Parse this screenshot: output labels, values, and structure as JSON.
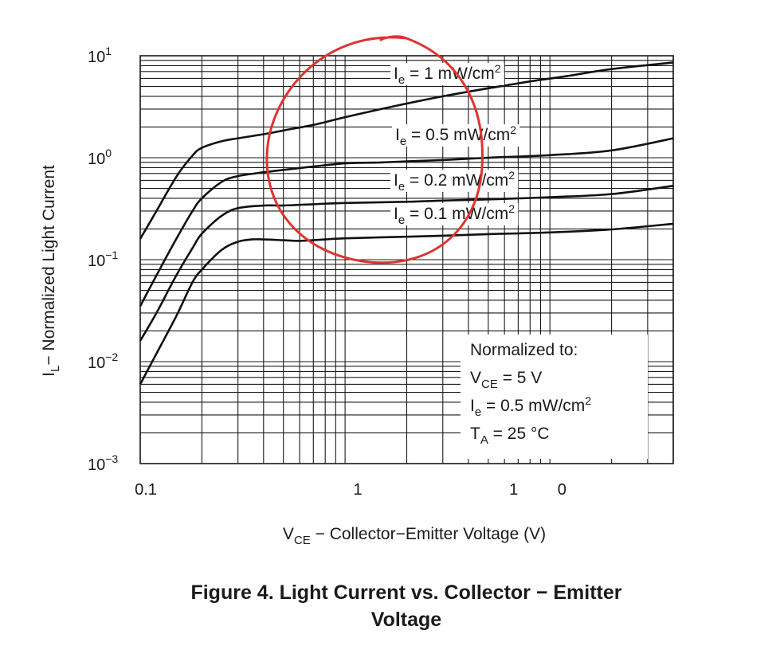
{
  "chart_data": {
    "type": "line",
    "x_scale": "log",
    "y_scale": "log",
    "xlim": [
      0.1,
      40
    ],
    "ylim": [
      0.001,
      10
    ],
    "grid": true,
    "x_tick_labels": [
      {
        "value": 0.1,
        "text": "0.1"
      },
      {
        "value": 1,
        "text": "1"
      },
      {
        "value": 10,
        "text": "1 0"
      }
    ],
    "y_tick_labels": [
      {
        "value": 10,
        "base": "10",
        "exp": "1"
      },
      {
        "value": 1,
        "base": "10",
        "exp": "0"
      },
      {
        "value": 0.1,
        "base": "10",
        "exp": "−1"
      },
      {
        "value": 0.01,
        "base": "10",
        "exp": "−2"
      },
      {
        "value": 0.001,
        "base": "10",
        "exp": "−3"
      }
    ],
    "xlabel": {
      "sym": "V",
      "sub": "CE",
      "rest": " − Collector−Emitter Voltage (V)"
    },
    "ylabel": {
      "sym": "I",
      "sub": "L",
      "rest": "− Normalized Light Current"
    },
    "series": [
      {
        "label": {
          "sym": "I",
          "sub": "e",
          "rest": " = 1 mW/cm",
          "sup": "2"
        },
        "points": [
          [
            0.1,
            0.16
          ],
          [
            0.12,
            0.3
          ],
          [
            0.15,
            0.65
          ],
          [
            0.18,
            1.05
          ],
          [
            0.2,
            1.25
          ],
          [
            0.25,
            1.45
          ],
          [
            0.3,
            1.55
          ],
          [
            0.4,
            1.7
          ],
          [
            0.5,
            1.85
          ],
          [
            0.7,
            2.1
          ],
          [
            1,
            2.5
          ],
          [
            1.5,
            3.0
          ],
          [
            2,
            3.4
          ],
          [
            3,
            4.0
          ],
          [
            5,
            4.8
          ],
          [
            8,
            5.6
          ],
          [
            12,
            6.3
          ],
          [
            20,
            7.4
          ],
          [
            40,
            8.6
          ]
        ]
      },
      {
        "label": {
          "sym": "I",
          "sub": "e",
          "rest": " = 0.5 mW/cm",
          "sup": "2"
        },
        "points": [
          [
            0.1,
            0.035
          ],
          [
            0.12,
            0.07
          ],
          [
            0.15,
            0.16
          ],
          [
            0.18,
            0.3
          ],
          [
            0.2,
            0.4
          ],
          [
            0.25,
            0.58
          ],
          [
            0.3,
            0.66
          ],
          [
            0.4,
            0.72
          ],
          [
            0.5,
            0.76
          ],
          [
            0.7,
            0.82
          ],
          [
            1,
            0.88
          ],
          [
            1.5,
            0.9
          ],
          [
            2,
            0.92
          ],
          [
            3,
            0.95
          ],
          [
            5,
            1.0
          ],
          [
            10,
            1.06
          ],
          [
            20,
            1.18
          ],
          [
            40,
            1.55
          ]
        ]
      },
      {
        "label": {
          "sym": "I",
          "sub": "e",
          "rest": " = 0.2 mW/cm",
          "sup": "2"
        },
        "points": [
          [
            0.1,
            0.016
          ],
          [
            0.12,
            0.03
          ],
          [
            0.15,
            0.07
          ],
          [
            0.18,
            0.13
          ],
          [
            0.2,
            0.18
          ],
          [
            0.25,
            0.27
          ],
          [
            0.3,
            0.32
          ],
          [
            0.4,
            0.34
          ],
          [
            0.5,
            0.34
          ],
          [
            0.7,
            0.35
          ],
          [
            1,
            0.36
          ],
          [
            2,
            0.37
          ],
          [
            3,
            0.38
          ],
          [
            5,
            0.39
          ],
          [
            10,
            0.41
          ],
          [
            20,
            0.44
          ],
          [
            40,
            0.53
          ]
        ]
      },
      {
        "label": {
          "sym": "I",
          "sub": "e",
          "rest": " = 0.1 mW/cm",
          "sup": "2"
        },
        "points": [
          [
            0.1,
            0.006
          ],
          [
            0.12,
            0.012
          ],
          [
            0.15,
            0.028
          ],
          [
            0.18,
            0.06
          ],
          [
            0.2,
            0.08
          ],
          [
            0.25,
            0.125
          ],
          [
            0.3,
            0.15
          ],
          [
            0.35,
            0.158
          ],
          [
            0.4,
            0.158
          ],
          [
            0.5,
            0.155
          ],
          [
            0.6,
            0.153
          ],
          [
            0.8,
            0.158
          ],
          [
            1,
            0.162
          ],
          [
            2,
            0.168
          ],
          [
            3,
            0.172
          ],
          [
            5,
            0.178
          ],
          [
            10,
            0.185
          ],
          [
            20,
            0.198
          ],
          [
            40,
            0.225
          ]
        ]
      }
    ],
    "annotation_box": {
      "title": "Normalized to:",
      "lines": [
        {
          "sym": "V",
          "sub": "CE",
          "rest": " = 5 V",
          "sup": ""
        },
        {
          "sym": "I",
          "sub": "e",
          "rest": " = 0.5 mW/cm",
          "sup": "2"
        },
        {
          "sym": "T",
          "sub": "A",
          "rest": " = 25 °C",
          "sup": ""
        }
      ]
    },
    "highlight": {
      "shape": "hand-drawn circle",
      "color": "#e0332f"
    }
  },
  "caption": {
    "line1": "Figure 4. Light Current vs. Collector − Emitter",
    "line2": "Voltage"
  }
}
